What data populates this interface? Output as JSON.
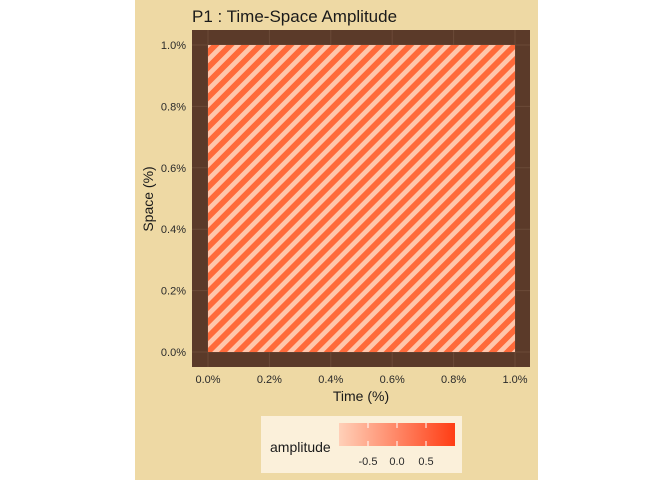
{
  "chart_data": {
    "type": "heatmap",
    "title": "P1 : Time-Space Amplitude",
    "xlabel": "Time (%)",
    "ylabel": "Space (%)",
    "xlim": [
      0,
      1
    ],
    "ylim": [
      0,
      1
    ],
    "x_ticks": [
      "0.0%",
      "0.2%",
      "0.4%",
      "0.6%",
      "0.8%",
      "1.0%"
    ],
    "y_ticks": [
      "0.0%",
      "0.2%",
      "0.4%",
      "0.6%",
      "0.8%",
      "1.0%"
    ],
    "pattern": "diagonal stripes",
    "stripe_count": 41,
    "legend": {
      "title": "amplitude",
      "placement": "bottom",
      "ticks": [
        "-0.5",
        "0.0",
        "0.5"
      ],
      "tick_values": [
        -0.5,
        0,
        0.5
      ],
      "range": [
        -1,
        1
      ],
      "low_color": "#FFD0B8",
      "high_color": "#FF3D14"
    },
    "panel_color": "#5B3A29",
    "background_color": "#EED9A4"
  }
}
